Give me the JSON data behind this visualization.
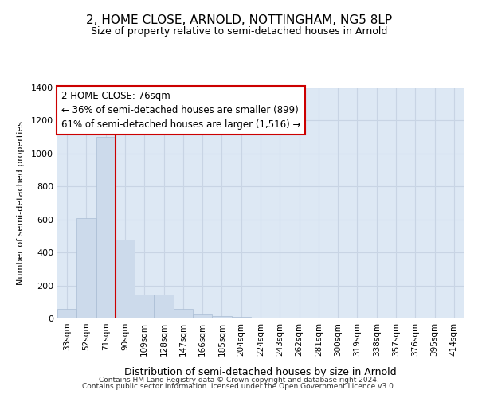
{
  "title1": "2, HOME CLOSE, ARNOLD, NOTTINGHAM, NG5 8LP",
  "title2": "Size of property relative to semi-detached houses in Arnold",
  "xlabel": "Distribution of semi-detached houses by size in Arnold",
  "ylabel": "Number of semi-detached properties",
  "bar_color": "#ccdaeb",
  "bar_edgecolor": "#aabdd4",
  "grid_color": "#c8d4e4",
  "background_color": "#dde8f4",
  "annotation_box_color": "#ffffff",
  "annotation_border_color": "#cc0000",
  "red_line_color": "#cc0000",
  "categories": [
    "33sqm",
    "52sqm",
    "71sqm",
    "90sqm",
    "109sqm",
    "128sqm",
    "147sqm",
    "166sqm",
    "185sqm",
    "204sqm",
    "224sqm",
    "243sqm",
    "262sqm",
    "281sqm",
    "300sqm",
    "319sqm",
    "338sqm",
    "357sqm",
    "376sqm",
    "395sqm",
    "414sqm"
  ],
  "values": [
    60,
    610,
    1100,
    480,
    145,
    145,
    60,
    25,
    15,
    10,
    0,
    0,
    0,
    0,
    0,
    0,
    0,
    0,
    0,
    0,
    0
  ],
  "ylim": [
    0,
    1400
  ],
  "yticks": [
    0,
    200,
    400,
    600,
    800,
    1000,
    1200,
    1400
  ],
  "red_line_x": 2.5,
  "annotation_line1": "2 HOME CLOSE: 76sqm",
  "annotation_line2": "← 36% of semi-detached houses are smaller (899)",
  "annotation_line3": "61% of semi-detached houses are larger (1,516) →",
  "footnote1": "Contains HM Land Registry data © Crown copyright and database right 2024.",
  "footnote2": "Contains public sector information licensed under the Open Government Licence v3.0."
}
